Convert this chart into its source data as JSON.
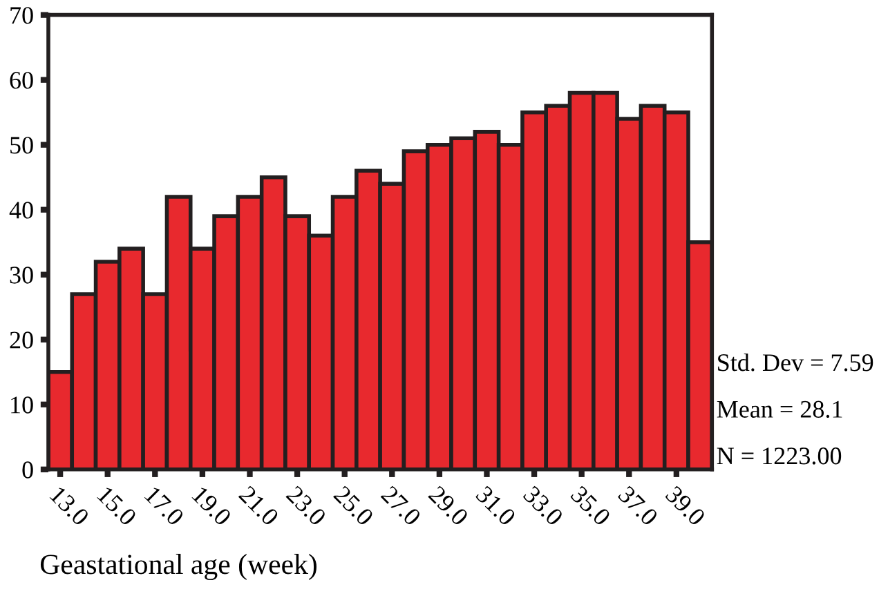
{
  "chart_data": {
    "type": "histogram",
    "xlabel": "Geastational age (week)",
    "bins": [
      12.5,
      13.5,
      14.5,
      15.5,
      16.5,
      17.5,
      18.5,
      19.5,
      20.5,
      21.5,
      22.5,
      23.5,
      24.5,
      25.5,
      26.5,
      27.5,
      28.5,
      29.5,
      30.5,
      31.5,
      32.5,
      33.5,
      34.5,
      35.5,
      36.5,
      37.5,
      38.5,
      39.5,
      40.5
    ],
    "values": [
      15,
      27,
      32,
      34,
      27,
      42,
      34,
      39,
      42,
      45,
      39,
      36,
      42,
      46,
      44,
      49,
      50,
      51,
      52,
      50,
      55,
      56,
      58,
      58,
      54,
      56,
      55,
      35
    ],
    "color": "#e8292e",
    "xlim": [
      12.5,
      40.5
    ],
    "ylim": [
      0,
      70
    ],
    "xticks": [
      {
        "value": 13,
        "label": "13.0"
      },
      {
        "value": 15,
        "label": "15.0"
      },
      {
        "value": 17,
        "label": "17.0"
      },
      {
        "value": 19,
        "label": "19.0"
      },
      {
        "value": 21,
        "label": "21.0"
      },
      {
        "value": 23,
        "label": "23.0"
      },
      {
        "value": 25,
        "label": "25.0"
      },
      {
        "value": 27,
        "label": "27.0"
      },
      {
        "value": 29,
        "label": "29.0"
      },
      {
        "value": 31,
        "label": "31.0"
      },
      {
        "value": 33,
        "label": "33.0"
      },
      {
        "value": 35,
        "label": "35.0"
      },
      {
        "value": 37,
        "label": "37.0"
      },
      {
        "value": 39,
        "label": "39.0"
      }
    ],
    "yticks": [
      0,
      10,
      20,
      30,
      40,
      50,
      60,
      70
    ],
    "grid": false,
    "annotations": [
      "Std. Dev = 7.59",
      "Mean = 28.1",
      "N = 1223.00"
    ]
  }
}
